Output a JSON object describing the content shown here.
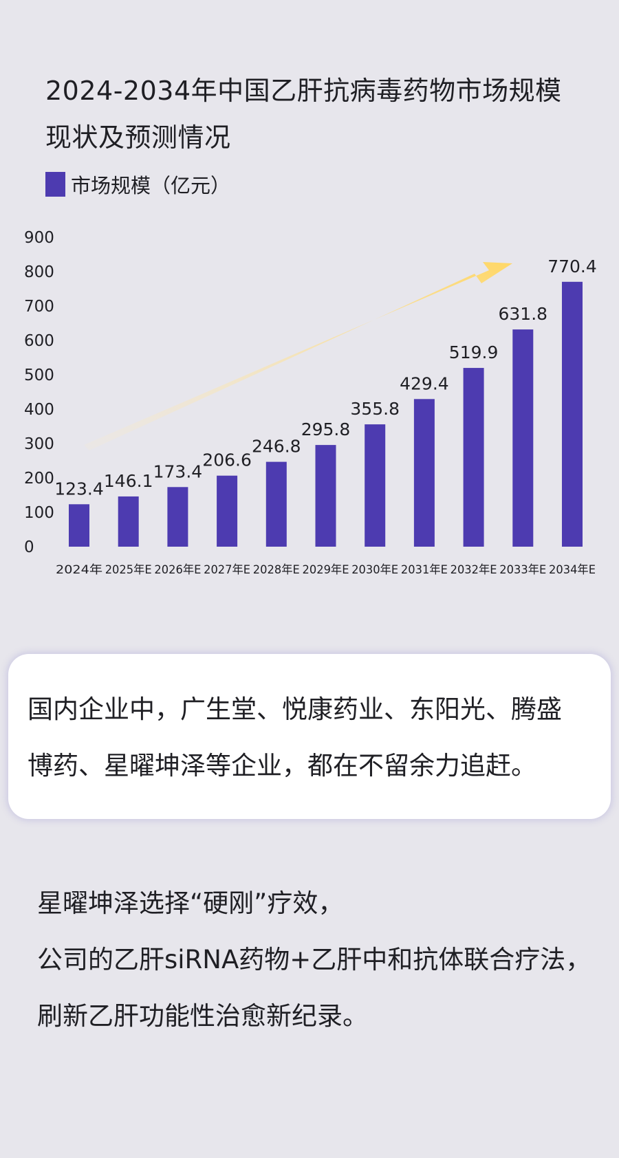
{
  "title_lines": [
    "2024-2034年中国乙肝抗病毒药物市场规模",
    "现状及预测情况"
  ],
  "legend": {
    "label": "市场规模（亿元）",
    "color": "#4d3bb0"
  },
  "chart_data": {
    "type": "bar",
    "title": "2024-2034年中国乙肝抗病毒药物市场规模现状及预测情况",
    "categories": [
      "2024年",
      "2025年E",
      "2026年E",
      "2027年E",
      "2028年E",
      "2029年E",
      "2030年E",
      "2031年E",
      "2032年E",
      "2033年E",
      "2034年E"
    ],
    "series": [
      {
        "name": "市场规模（亿元）",
        "values": [
          123.4,
          146.1,
          173.4,
          206.6,
          246.8,
          295.8,
          355.8,
          429.4,
          519.9,
          631.8,
          770.4
        ],
        "color": "#4d3bb0"
      }
    ],
    "value_labels": [
      "123.4",
      "146.1",
      "173.4",
      "206.6",
      "246.8",
      "295.8",
      "355.8",
      "429.4",
      "519.9",
      "631.8",
      "770.4"
    ],
    "yticks": [
      0,
      100,
      200,
      300,
      400,
      500,
      600,
      700,
      800,
      900
    ],
    "ytick_labels": [
      "0",
      "100",
      "200",
      "300",
      "400",
      "500",
      "600",
      "700",
      "800",
      "900"
    ],
    "ylim": [
      0,
      900
    ],
    "grid": false,
    "legend_position": "top-left",
    "annotation": "trend-arrow"
  },
  "card": {
    "lines": [
      "国内企业中，广生堂、悦康药业、东阳光、腾盛",
      "博药、星曜坤泽等企业，都在不留余力追赶。"
    ]
  },
  "paragraph": {
    "lines": [
      "星曜坤泽选择“硬刚”疗效，",
      "公司的乙肝siRNA药物+乙肝中和抗体联合疗法，",
      "刷新乙肝功能性治愈新纪录。"
    ]
  }
}
